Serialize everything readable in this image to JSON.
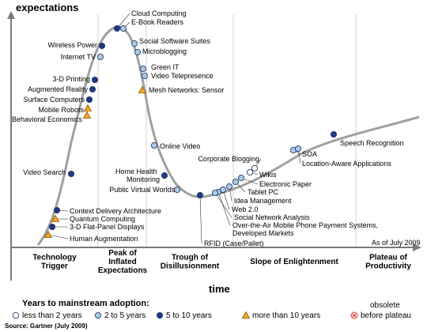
{
  "chart_data": {
    "type": "scatter",
    "title": "",
    "ylabel": "expectations",
    "xlabel": "time",
    "as_of": "As of July 2009",
    "source": "Source: Gartner (July 2009)",
    "phases": [
      {
        "lines": [
          "Technology",
          "Trigger"
        ]
      },
      {
        "lines": [
          "Peak of",
          "Inflated",
          "Expectations"
        ]
      },
      {
        "lines": [
          "Trough of",
          "Disillusionment"
        ]
      },
      {
        "lines": [
          "Slope of Enlightenment"
        ]
      },
      {
        "lines": [
          "Plateau of",
          "Productivity"
        ]
      }
    ],
    "legend": {
      "title": "Years to mainstream adoption:",
      "items": [
        {
          "key": "lt2",
          "label": "less than 2 years",
          "symbol": "circle",
          "color": "#ffffff"
        },
        {
          "key": "2to5",
          "label": "2 to 5 years",
          "symbol": "circle",
          "color": "#a9cbe6"
        },
        {
          "key": "5to10",
          "label": "5 to 10 years",
          "symbol": "circle",
          "color": "#1f3a87"
        },
        {
          "key": "gt10",
          "label": "more than 10 years",
          "symbol": "triangle",
          "color": "#f5a623"
        },
        {
          "key": "obs",
          "label": "before plateau",
          "label_top": "obsolete",
          "symbol": "x-circle",
          "color": "#e03030"
        }
      ]
    },
    "technologies": [
      {
        "name": "Cloud Computing",
        "cat": "5to10"
      },
      {
        "name": "E-Book Readers",
        "cat": "2to5"
      },
      {
        "name": "Social Software Suites",
        "cat": "2to5"
      },
      {
        "name": "Microblogging",
        "cat": "2to5"
      },
      {
        "name": "Wireless Power",
        "cat": "5to10"
      },
      {
        "name": "Internet TV",
        "cat": "2to5"
      },
      {
        "name": "Green IT",
        "cat": "2to5"
      },
      {
        "name": "Video Telepresence",
        "cat": "2to5"
      },
      {
        "name": "Mesh Networks: Sensor",
        "cat": "gt10"
      },
      {
        "name": "3-D Printing",
        "cat": "5to10"
      },
      {
        "name": "Augmented Reality",
        "cat": "5to10"
      },
      {
        "name": "Surface Computers",
        "cat": "5to10"
      },
      {
        "name": "Mobile Robots",
        "cat": "gt10"
      },
      {
        "name": "Behavioral Economics",
        "cat": "gt10"
      },
      {
        "name": "Online Video",
        "cat": "2to5"
      },
      {
        "name": "Video Search",
        "cat": "5to10"
      },
      {
        "name": "Home Health Monitoring",
        "cat": "5to10"
      },
      {
        "name": "Public Virtual Worlds",
        "cat": "2to5"
      },
      {
        "name": "Context Delivery Architecture",
        "cat": "5to10"
      },
      {
        "name": "Quantum Computing",
        "cat": "gt10"
      },
      {
        "name": "3-D Flat-Panel Displays",
        "cat": "5to10"
      },
      {
        "name": "Human Augmentation",
        "cat": "gt10"
      },
      {
        "name": "RFID (Case/Pallet)",
        "cat": "5to10"
      },
      {
        "name": "Over-the-Air Mobile Phone Payment Systems, Developed Markets",
        "cat": "2to5"
      },
      {
        "name": "Social Network Analysis",
        "cat": "2to5"
      },
      {
        "name": "Web 2.0",
        "cat": "2to5"
      },
      {
        "name": "Idea Management",
        "cat": "2to5"
      },
      {
        "name": "Tablet PC",
        "cat": "2to5"
      },
      {
        "name": "Electronic Paper",
        "cat": "2to5"
      },
      {
        "name": "Wikis",
        "cat": "lt2"
      },
      {
        "name": "Corporate Blogging",
        "cat": "lt2"
      },
      {
        "name": "SOA",
        "cat": "2to5"
      },
      {
        "name": "Location-Aware Applications",
        "cat": "2to5"
      },
      {
        "name": "Speech Recognition",
        "cat": "5to10"
      }
    ]
  }
}
